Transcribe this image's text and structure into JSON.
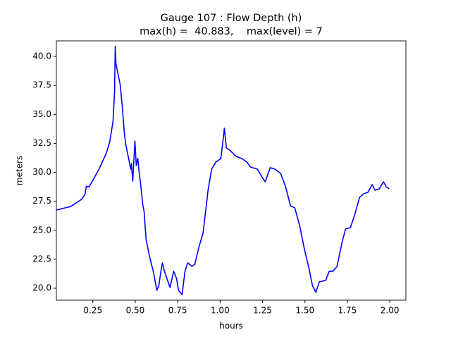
{
  "chart_data": {
    "type": "line",
    "title": "Gauge 107 : Flow Depth (h)",
    "subtitle": "max(h) =  40.883,    max(level) = 7",
    "x_label": "hours",
    "y_label": "meters",
    "color": "#0000ff",
    "x": [
      0.037,
      0.12,
      0.183,
      0.203,
      0.212,
      0.228,
      0.245,
      0.286,
      0.328,
      0.349,
      0.357,
      0.369,
      0.378,
      0.382,
      0.386,
      0.394,
      0.411,
      0.423,
      0.436,
      0.444,
      0.461,
      0.473,
      0.477,
      0.485,
      0.498,
      0.506,
      0.515,
      0.523,
      0.531,
      0.544,
      0.552,
      0.564,
      0.585,
      0.606,
      0.627,
      0.639,
      0.651,
      0.66,
      0.672,
      0.689,
      0.705,
      0.726,
      0.743,
      0.755,
      0.776,
      0.793,
      0.809,
      0.834,
      0.851,
      0.876,
      0.9,
      0.929,
      0.95,
      0.975,
      1.004,
      1.017,
      1.025,
      1.037,
      1.058,
      1.095,
      1.129,
      1.158,
      1.178,
      1.22,
      1.249,
      1.266,
      1.295,
      1.324,
      1.357,
      1.386,
      1.415,
      1.44,
      1.469,
      1.498,
      1.523,
      1.544,
      1.564,
      1.585,
      1.622,
      1.643,
      1.664,
      1.689,
      1.718,
      1.739,
      1.768,
      1.793,
      1.822,
      1.846,
      1.871,
      1.896,
      1.913,
      1.938,
      1.963,
      1.979,
      1.996
    ],
    "values": [
      26.75,
      27.05,
      27.66,
      28.08,
      28.8,
      28.75,
      29.18,
      30.27,
      31.6,
      32.58,
      33.3,
      34.4,
      36.96,
      40.883,
      39.4,
      38.8,
      37.57,
      35.75,
      33.3,
      32.4,
      31.18,
      30.27,
      30.76,
      29.24,
      32.7,
      30.58,
      31.2,
      29.97,
      29.06,
      27.23,
      26.62,
      24.19,
      22.67,
      21.46,
      19.82,
      20.24,
      21.46,
      22.19,
      21.46,
      20.73,
      20.06,
      21.46,
      20.85,
      19.82,
      19.45,
      21.46,
      22.19,
      21.88,
      22.07,
      23.59,
      24.8,
      28.45,
      30.27,
      30.88,
      31.18,
      32.7,
      33.8,
      32.1,
      31.9,
      31.37,
      31.18,
      30.88,
      30.46,
      30.27,
      29.54,
      29.18,
      30.4,
      30.27,
      29.9,
      28.75,
      27.1,
      26.93,
      25.4,
      23.28,
      21.76,
      20.24,
      19.64,
      20.55,
      20.67,
      21.46,
      21.46,
      21.88,
      23.9,
      25.1,
      25.23,
      26.32,
      27.84,
      28.15,
      28.27,
      28.94,
      28.45,
      28.57,
      29.18,
      28.75,
      28.57
    ],
    "xlim": [
      0.035,
      2.095
    ],
    "ylim": [
      18.97,
      41.34
    ],
    "xticks": [
      {
        "value": 0.25,
        "label": "0.25"
      },
      {
        "value": 0.5,
        "label": "0.50"
      },
      {
        "value": 0.75,
        "label": "0.75"
      },
      {
        "value": 1.0,
        "label": "1.00"
      },
      {
        "value": 1.25,
        "label": "1.25"
      },
      {
        "value": 1.5,
        "label": "1.50"
      },
      {
        "value": 1.75,
        "label": "1.75"
      },
      {
        "value": 2.0,
        "label": "2.00"
      }
    ],
    "yticks": [
      {
        "value": 20,
        "label": "20.0"
      },
      {
        "value": 22.5,
        "label": "22.5"
      },
      {
        "value": 25,
        "label": "25.0"
      },
      {
        "value": 27.5,
        "label": "27.5"
      },
      {
        "value": 30,
        "label": "30.0"
      },
      {
        "value": 32.5,
        "label": "32.5"
      },
      {
        "value": 35,
        "label": "35.0"
      },
      {
        "value": 37.5,
        "label": "37.5"
      },
      {
        "value": 40,
        "label": "40.0"
      }
    ]
  }
}
